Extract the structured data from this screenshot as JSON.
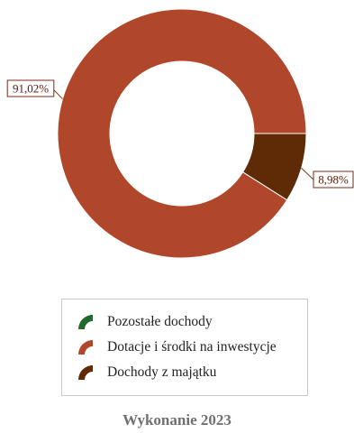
{
  "chart_data": {
    "type": "pie",
    "donut": true,
    "categories": [
      "Pozostałe dochody",
      "Dotacje i środki na inwestycje",
      "Dochody z majątku"
    ],
    "values": [
      0,
      91.02,
      8.98
    ],
    "value_labels": [
      "",
      "91,02%",
      "8,98%"
    ],
    "colors": [
      "#22692c",
      "#b1472a",
      "#5e2b06"
    ],
    "title": "Wykonanie 2023",
    "legend_position": "bottom",
    "legend": [
      "Pozostałe dochody",
      "Dotacje i środki na inwestycje",
      "Dochody z majątku"
    ]
  },
  "legend": {
    "items": [
      {
        "label": "Pozostałe dochody",
        "color": "#22692c"
      },
      {
        "label": "Dotacje i środki na inwestycje",
        "color": "#b1472a"
      },
      {
        "label": "Dochody z majątku",
        "color": "#5e2b06"
      }
    ]
  },
  "footer": {
    "title": "Wykonanie 2023"
  }
}
